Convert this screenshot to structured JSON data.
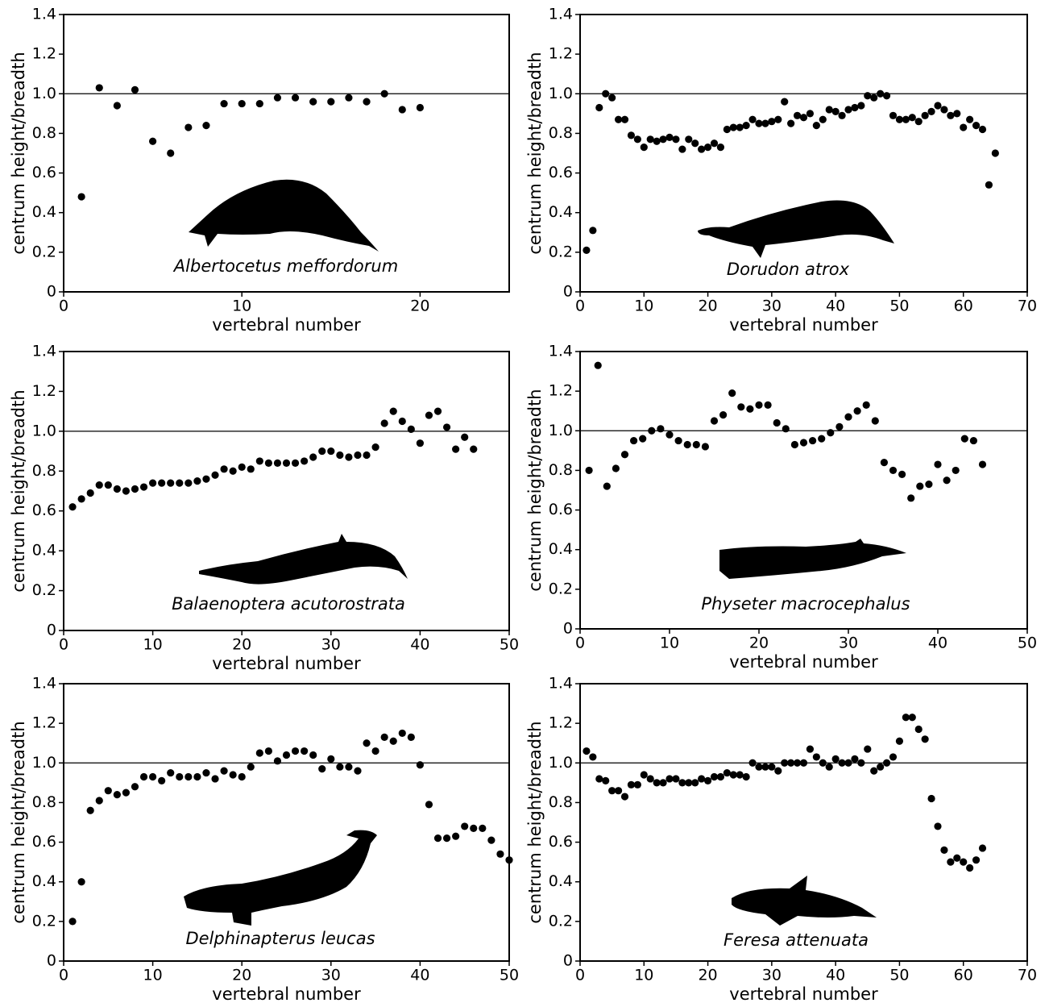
{
  "chart_data": [
    {
      "type": "scatter",
      "annotation": "Albertocetus meffordorum",
      "xlabel": "vertebral number",
      "ylabel": "centrum height/breadth",
      "color": "#000000",
      "x": [
        1,
        2,
        3,
        4,
        5,
        6,
        7,
        8,
        9,
        10,
        11,
        12,
        13,
        14,
        15,
        16,
        17,
        18,
        19,
        20
      ],
      "values": [
        0.48,
        1.03,
        0.94,
        1.02,
        0.76,
        0.7,
        0.83,
        0.84,
        0.95,
        0.95,
        0.95,
        0.98,
        0.98,
        0.96,
        0.96,
        0.98,
        0.96,
        1.0,
        0.92,
        0.93
      ],
      "xlim": [
        0,
        25
      ],
      "ylim": [
        0,
        1.4
      ],
      "xticks": [
        0,
        10,
        20
      ],
      "yticks": [
        0,
        0.2,
        0.4,
        0.6,
        0.8,
        {
          "value": 1,
          "label": "1.0"
        },
        1.2,
        1.4
      ],
      "reference_line": 1
    },
    {
      "type": "scatter",
      "annotation": "Dorudon atrox",
      "xlabel": "vertebral number",
      "ylabel": "centrum height/breadth",
      "color": "#000000",
      "x": [
        1,
        2,
        3,
        4,
        5,
        6,
        7,
        8,
        9,
        10,
        11,
        12,
        13,
        14,
        15,
        16,
        17,
        18,
        19,
        20,
        21,
        22,
        23,
        24,
        25,
        26,
        27,
        28,
        29,
        30,
        31,
        32,
        33,
        34,
        35,
        36,
        37,
        38,
        39,
        40,
        41,
        42,
        43,
        44,
        45,
        46,
        47,
        48,
        49,
        50,
        51,
        52,
        53,
        54,
        55,
        56,
        57,
        58,
        59,
        60,
        61,
        62,
        63,
        64,
        65
      ],
      "values": [
        0.21,
        0.31,
        0.93,
        1.0,
        0.98,
        0.87,
        0.87,
        0.79,
        0.77,
        0.73,
        0.77,
        0.76,
        0.77,
        0.78,
        0.77,
        0.72,
        0.77,
        0.75,
        0.72,
        0.73,
        0.75,
        0.73,
        0.82,
        0.83,
        0.83,
        0.84,
        0.87,
        0.85,
        0.85,
        0.86,
        0.87,
        0.96,
        0.85,
        0.89,
        0.88,
        0.9,
        0.84,
        0.87,
        0.92,
        0.91,
        0.89,
        0.92,
        0.93,
        0.94,
        0.99,
        0.98,
        1.0,
        0.99,
        0.89,
        0.87,
        0.87,
        0.88,
        0.86,
        0.89,
        0.91,
        0.94,
        0.92,
        0.89,
        0.9,
        0.83,
        0.87,
        0.84,
        0.82,
        0.54,
        0.7
      ],
      "xlim": [
        0,
        70
      ],
      "ylim": [
        0,
        1.4
      ],
      "xticks": [
        0,
        10,
        20,
        30,
        40,
        50,
        60,
        70
      ],
      "yticks": [
        0,
        0.2,
        0.4,
        0.6,
        0.8,
        {
          "value": 1,
          "label": "1.0"
        },
        1.2,
        1.4
      ],
      "reference_line": 1
    },
    {
      "type": "scatter",
      "annotation": "Balaenoptera acutorostrata",
      "xlabel": "vertebral number",
      "ylabel": "centrum height/breadth",
      "color": "#000000",
      "x": [
        1,
        2,
        3,
        4,
        5,
        6,
        7,
        8,
        9,
        10,
        11,
        12,
        13,
        14,
        15,
        16,
        17,
        18,
        19,
        20,
        21,
        22,
        23,
        24,
        25,
        26,
        27,
        28,
        29,
        30,
        31,
        32,
        33,
        34,
        35,
        36,
        37,
        38,
        39,
        40,
        41,
        42,
        43,
        44,
        45,
        46
      ],
      "values": [
        0.62,
        0.66,
        0.69,
        0.73,
        0.73,
        0.71,
        0.7,
        0.71,
        0.72,
        0.74,
        0.74,
        0.74,
        0.74,
        0.74,
        0.75,
        0.76,
        0.78,
        0.81,
        0.8,
        0.82,
        0.81,
        0.85,
        0.84,
        0.84,
        0.84,
        0.84,
        0.85,
        0.87,
        0.9,
        0.9,
        0.88,
        0.87,
        0.88,
        0.88,
        0.92,
        1.04,
        1.1,
        1.05,
        1.01,
        0.94,
        1.08,
        1.1,
        1.02,
        0.91,
        0.97,
        0.91
      ],
      "xlim": [
        0,
        50
      ],
      "ylim": [
        0,
        1.4
      ],
      "xticks": [
        0,
        10,
        20,
        30,
        40,
        50
      ],
      "yticks": [
        0,
        0.2,
        0.4,
        0.6,
        0.8,
        {
          "value": 1,
          "label": "1.0"
        },
        1.2,
        1.4
      ],
      "reference_line": 1
    },
    {
      "type": "scatter",
      "annotation": "Physeter macrocephalus",
      "xlabel": "vertebral number",
      "ylabel": "centrum height/breadth",
      "color": "#000000",
      "x": [
        1,
        2,
        3,
        4,
        5,
        6,
        7,
        8,
        9,
        10,
        11,
        12,
        13,
        14,
        15,
        16,
        17,
        18,
        19,
        20,
        21,
        22,
        23,
        24,
        25,
        26,
        27,
        28,
        29,
        30,
        31,
        32,
        33,
        34,
        35,
        36,
        37,
        38,
        39,
        40,
        41,
        42,
        43,
        44,
        45
      ],
      "values": [
        0.8,
        1.33,
        0.72,
        0.81,
        0.88,
        0.95,
        0.96,
        1.0,
        1.01,
        0.98,
        0.95,
        0.93,
        0.93,
        0.92,
        1.05,
        1.08,
        1.19,
        1.12,
        1.11,
        1.13,
        1.13,
        1.04,
        1.01,
        0.93,
        0.94,
        0.95,
        0.96,
        0.99,
        1.02,
        1.07,
        1.1,
        1.13,
        1.05,
        0.84,
        0.8,
        0.78,
        0.66,
        0.72,
        0.73,
        0.83,
        0.75,
        0.8,
        0.96,
        0.95,
        0.83
      ],
      "xlim": [
        0,
        50
      ],
      "ylim": [
        0,
        1.4
      ],
      "xticks": [
        0,
        10,
        20,
        30,
        40,
        50
      ],
      "yticks": [
        0,
        0.2,
        0.4,
        0.6,
        0.8,
        {
          "value": 1,
          "label": "1.0"
        },
        1.2,
        1.4
      ],
      "reference_line": 1
    },
    {
      "type": "scatter",
      "annotation": "Delphinapterus leucas",
      "xlabel": "vertebral number",
      "ylabel": "centrum height/breadth",
      "color": "#000000",
      "x": [
        1,
        2,
        3,
        4,
        5,
        6,
        7,
        8,
        9,
        10,
        11,
        12,
        13,
        14,
        15,
        16,
        17,
        18,
        19,
        20,
        21,
        22,
        23,
        24,
        25,
        26,
        27,
        28,
        29,
        30,
        31,
        32,
        33,
        34,
        35,
        36,
        37,
        38,
        39,
        40,
        41,
        42,
        43,
        44,
        45,
        46,
        47,
        48,
        49,
        50
      ],
      "values": [
        0.2,
        0.4,
        0.76,
        0.81,
        0.86,
        0.84,
        0.85,
        0.88,
        0.93,
        0.93,
        0.91,
        0.95,
        0.93,
        0.93,
        0.93,
        0.95,
        0.92,
        0.96,
        0.94,
        0.93,
        0.98,
        1.05,
        1.06,
        1.01,
        1.04,
        1.06,
        1.06,
        1.04,
        0.97,
        1.02,
        0.98,
        0.98,
        0.96,
        1.1,
        1.06,
        1.13,
        1.11,
        1.15,
        1.13,
        0.99,
        0.79,
        0.62,
        0.62,
        0.63,
        0.68,
        0.67,
        0.67,
        0.61,
        0.54,
        0.51
      ],
      "xlim": [
        0,
        50
      ],
      "ylim": [
        0,
        1.4
      ],
      "xticks": [
        0,
        10,
        20,
        30,
        40,
        50
      ],
      "yticks": [
        0,
        0.2,
        0.4,
        0.6,
        0.8,
        {
          "value": 1,
          "label": "1.0"
        },
        1.2,
        1.4
      ],
      "reference_line": 1
    },
    {
      "type": "scatter",
      "annotation": "Feresa attenuata",
      "xlabel": "vertebral number",
      "ylabel": "centrum height/breadth",
      "color": "#000000",
      "x": [
        1,
        2,
        3,
        4,
        5,
        6,
        7,
        8,
        9,
        10,
        11,
        12,
        13,
        14,
        15,
        16,
        17,
        18,
        19,
        20,
        21,
        22,
        23,
        24,
        25,
        26,
        27,
        28,
        29,
        30,
        31,
        32,
        33,
        34,
        35,
        36,
        37,
        38,
        39,
        40,
        41,
        42,
        43,
        44,
        45,
        46,
        47,
        48,
        49,
        50,
        51,
        52,
        53,
        54,
        55,
        56,
        57,
        58,
        59,
        60,
        61,
        62,
        63
      ],
      "values": [
        1.06,
        1.03,
        0.92,
        0.91,
        0.86,
        0.86,
        0.83,
        0.89,
        0.89,
        0.94,
        0.92,
        0.9,
        0.9,
        0.92,
        0.92,
        0.9,
        0.9,
        0.9,
        0.92,
        0.91,
        0.93,
        0.93,
        0.95,
        0.94,
        0.94,
        0.93,
        1.0,
        0.98,
        0.98,
        0.98,
        0.96,
        1.0,
        1.0,
        1.0,
        1.0,
        1.07,
        1.03,
        1.0,
        0.98,
        1.02,
        1.0,
        1.0,
        1.02,
        1.0,
        1.07,
        0.96,
        0.98,
        1.0,
        1.03,
        1.11,
        1.23,
        1.23,
        1.17,
        1.12,
        0.82,
        0.68,
        0.56,
        0.5,
        0.52,
        0.5,
        0.47,
        0.51,
        0.57
      ],
      "xlim": [
        0,
        70
      ],
      "ylim": [
        0,
        1.4
      ],
      "xticks": [
        0,
        10,
        20,
        30,
        40,
        50,
        60,
        70
      ],
      "yticks": [
        0,
        0.2,
        0.4,
        0.6,
        0.8,
        {
          "value": 1,
          "label": "1.0"
        },
        1.2,
        1.4
      ],
      "reference_line": 1
    }
  ]
}
